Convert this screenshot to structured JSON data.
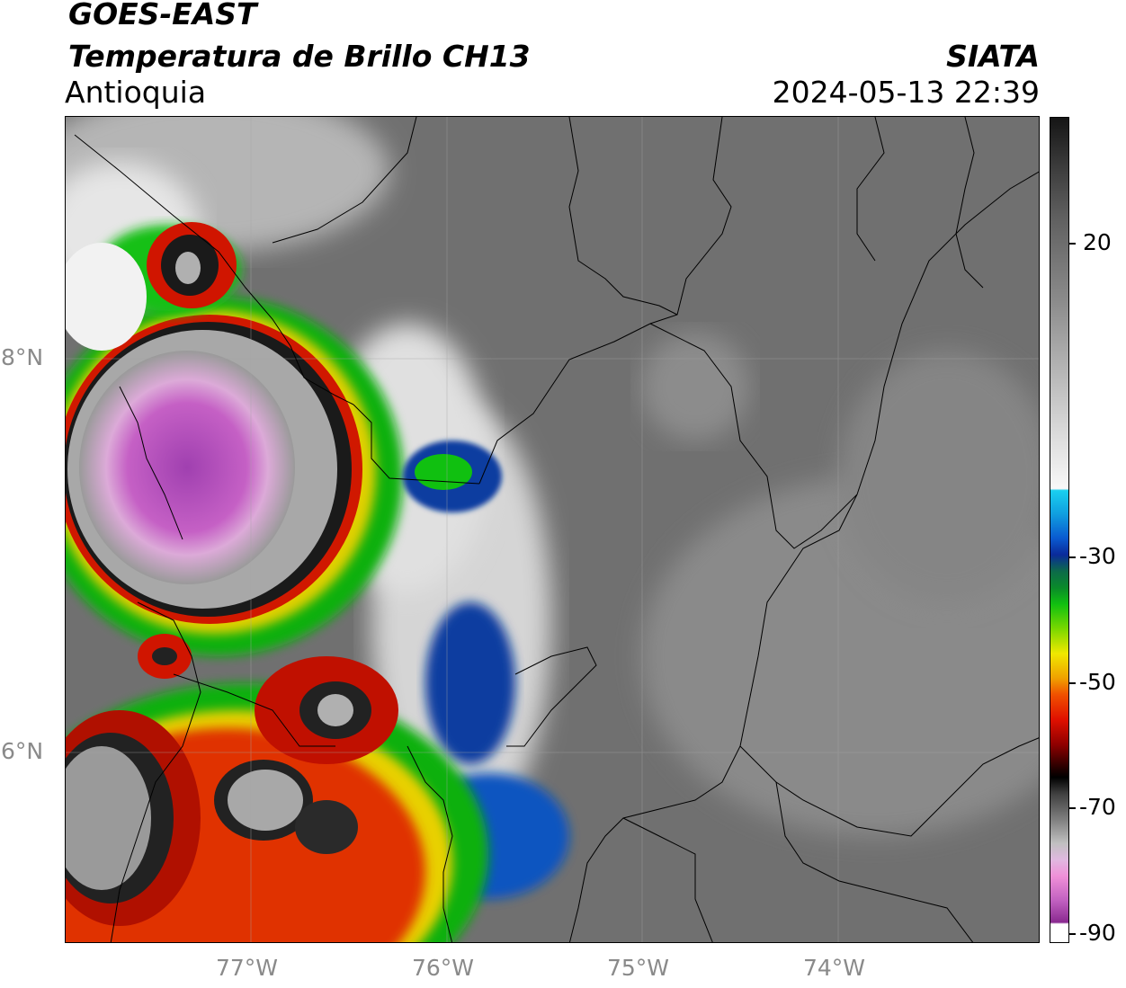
{
  "header": {
    "satellite": "GOES-EAST",
    "product": "Temperatura de Brillo CH13",
    "region": "Antioquia",
    "agency": "SIATA",
    "timestamp": "2024-05-13 22:39"
  },
  "axes": {
    "lat_labels": [
      "8°N",
      "6°N"
    ],
    "lon_labels": [
      "77°W",
      "76°W",
      "75°W",
      "74°W"
    ]
  },
  "colorbar": {
    "ticks": [
      "20",
      "-30",
      "-50",
      "-70",
      "-90"
    ],
    "colors": {
      "cyan": "#1ad0f0",
      "blue": "#0a2a9a",
      "green": "#10c010",
      "yellow": "#f0e800",
      "red": "#e01000",
      "black": "#000000",
      "magenta": "#c050c0"
    }
  }
}
